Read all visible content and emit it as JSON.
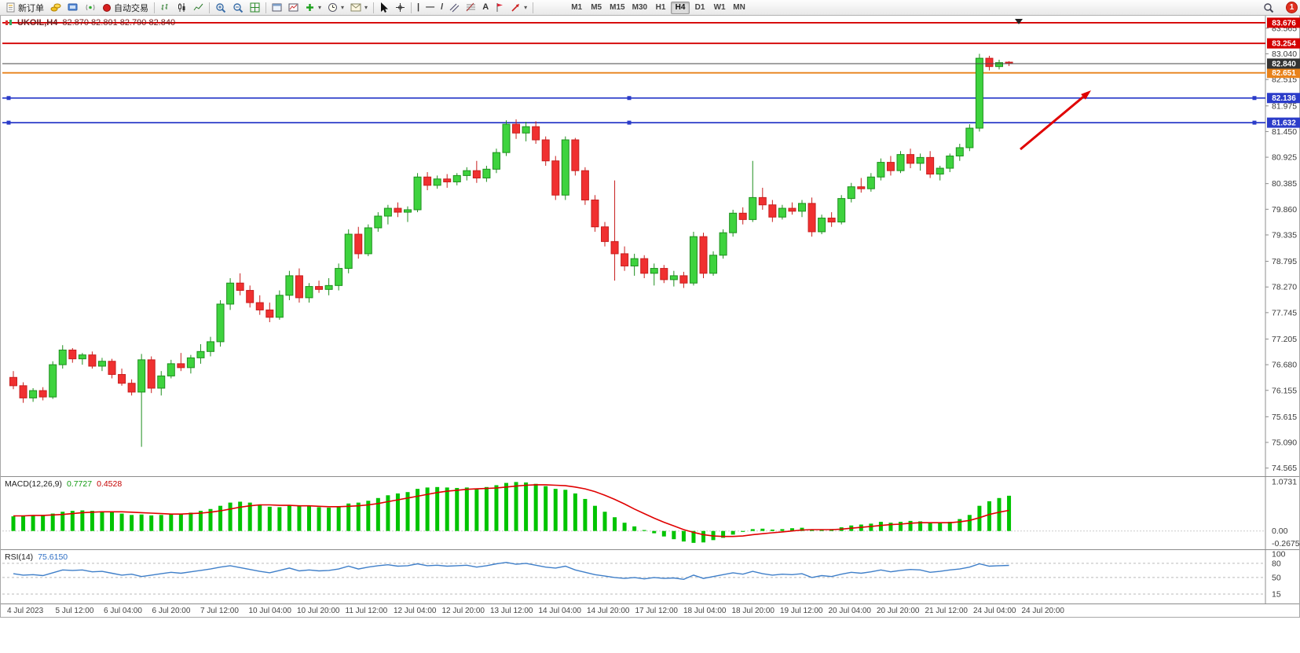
{
  "toolbar": {
    "new_order_label": "新订单",
    "autotrading_label": "自动交易",
    "caret": "▾",
    "drawing": {
      "vline": "|",
      "hline": "—",
      "trendline": "/",
      "text": "A"
    },
    "timeframes": [
      "M1",
      "M5",
      "M15",
      "M30",
      "H1",
      "H4",
      "D1",
      "W1",
      "MN"
    ],
    "active_timeframe": "H4",
    "notification_count": "1"
  },
  "chart": {
    "title": "UKOIL,H4",
    "ohlc": "82.870 82.891 82.790 82.840"
  },
  "chart_data": {
    "type": "candlestick",
    "symbol": "UKOIL",
    "timeframe": "H4",
    "price_axis_ticks": [
      83.565,
      83.04,
      82.515,
      81.975,
      81.45,
      80.925,
      80.385,
      79.86,
      79.335,
      78.795,
      78.27,
      77.745,
      77.205,
      76.68,
      76.155,
      75.615,
      75.09,
      74.565
    ],
    "hlines": [
      {
        "value": 83.676,
        "label": "83.676",
        "color": "#d40000",
        "selected": false
      },
      {
        "value": 83.254,
        "label": "83.254",
        "color": "#d40000",
        "selected": false
      },
      {
        "value": 82.651,
        "label": "82.651",
        "color": "#e8821a",
        "selected": false
      },
      {
        "value": 82.136,
        "label": "82.136",
        "color": "#2b3cc9",
        "selected": true
      },
      {
        "value": 81.632,
        "label": "81.632",
        "color": "#2b3cc9",
        "selected": true
      }
    ],
    "current_price": {
      "value": 82.84,
      "label": "82.840",
      "color": "#333333"
    },
    "annotation_arrow": {
      "from": [
        1298,
        170
      ],
      "to": [
        1388,
        95
      ],
      "color": "#e00000"
    },
    "time_labels": [
      "4 Jul 2023",
      "5 Jul 12:00",
      "6 Jul 04:00",
      "6 Jul 20:00",
      "7 Jul 12:00",
      "10 Jul 04:00",
      "10 Jul 20:00",
      "11 Jul 12:00",
      "12 Jul 04:00",
      "12 Jul 20:00",
      "13 Jul 12:00",
      "14 Jul 04:00",
      "14 Jul 20:00",
      "17 Jul 12:00",
      "18 Jul 04:00",
      "18 Jul 20:00",
      "19 Jul 12:00",
      "20 Jul 04:00",
      "20 Jul 20:00",
      "21 Jul 12:00",
      "24 Jul 04:00",
      "24 Jul 20:00"
    ],
    "candles": [
      [
        76.42,
        76.55,
        76.18,
        76.25
      ],
      [
        76.25,
        76.32,
        75.9,
        76.0
      ],
      [
        76.0,
        76.2,
        75.92,
        76.15
      ],
      [
        76.15,
        76.22,
        75.95,
        76.02
      ],
      [
        76.02,
        76.75,
        75.98,
        76.68
      ],
      [
        76.68,
        77.08,
        76.6,
        76.98
      ],
      [
        76.98,
        77.02,
        76.72,
        76.8
      ],
      [
        76.8,
        76.92,
        76.68,
        76.88
      ],
      [
        76.88,
        76.95,
        76.6,
        76.65
      ],
      [
        76.65,
        76.82,
        76.55,
        76.75
      ],
      [
        76.75,
        76.8,
        76.4,
        76.48
      ],
      [
        76.48,
        76.6,
        76.25,
        76.3
      ],
      [
        76.3,
        76.38,
        76.05,
        76.12
      ],
      [
        76.12,
        76.9,
        75.0,
        76.78
      ],
      [
        76.78,
        76.85,
        76.1,
        76.2
      ],
      [
        76.2,
        76.55,
        76.05,
        76.45
      ],
      [
        76.45,
        76.78,
        76.4,
        76.7
      ],
      [
        76.7,
        76.92,
        76.55,
        76.62
      ],
      [
        76.62,
        76.88,
        76.5,
        76.82
      ],
      [
        76.82,
        77.1,
        76.7,
        76.95
      ],
      [
        76.95,
        77.25,
        76.85,
        77.15
      ],
      [
        77.15,
        78.0,
        77.05,
        77.92
      ],
      [
        77.92,
        78.45,
        77.8,
        78.35
      ],
      [
        78.35,
        78.55,
        78.1,
        78.2
      ],
      [
        78.2,
        78.3,
        77.85,
        77.95
      ],
      [
        77.95,
        78.1,
        77.7,
        77.8
      ],
      [
        77.8,
        77.95,
        77.55,
        77.65
      ],
      [
        77.65,
        78.2,
        77.6,
        78.1
      ],
      [
        78.1,
        78.6,
        78.0,
        78.5
      ],
      [
        78.5,
        78.65,
        77.95,
        78.05
      ],
      [
        78.05,
        78.35,
        77.95,
        78.28
      ],
      [
        78.28,
        78.4,
        78.15,
        78.22
      ],
      [
        78.22,
        78.45,
        78.1,
        78.3
      ],
      [
        78.3,
        78.75,
        78.2,
        78.65
      ],
      [
        78.65,
        79.45,
        78.55,
        79.35
      ],
      [
        79.35,
        79.5,
        78.85,
        78.95
      ],
      [
        78.95,
        79.55,
        78.9,
        79.48
      ],
      [
        79.48,
        79.8,
        79.4,
        79.72
      ],
      [
        79.72,
        79.95,
        79.55,
        79.88
      ],
      [
        79.88,
        80.0,
        79.7,
        79.8
      ],
      [
        79.8,
        79.92,
        79.6,
        79.85
      ],
      [
        79.85,
        80.6,
        79.8,
        80.52
      ],
      [
        80.52,
        80.62,
        80.25,
        80.35
      ],
      [
        80.35,
        80.55,
        80.28,
        80.48
      ],
      [
        80.48,
        80.58,
        80.3,
        80.42
      ],
      [
        80.42,
        80.6,
        80.35,
        80.55
      ],
      [
        80.55,
        80.72,
        80.45,
        80.65
      ],
      [
        80.65,
        80.85,
        80.4,
        80.5
      ],
      [
        80.5,
        80.75,
        80.42,
        80.68
      ],
      [
        80.68,
        81.1,
        80.6,
        81.02
      ],
      [
        81.02,
        81.68,
        80.95,
        81.6
      ],
      [
        81.6,
        81.7,
        81.3,
        81.42
      ],
      [
        81.42,
        81.65,
        81.25,
        81.55
      ],
      [
        81.55,
        81.66,
        81.2,
        81.28
      ],
      [
        81.28,
        81.35,
        80.75,
        80.85
      ],
      [
        80.85,
        80.95,
        80.05,
        80.15
      ],
      [
        80.15,
        81.35,
        80.05,
        81.28
      ],
      [
        81.28,
        81.32,
        80.55,
        80.65
      ],
      [
        80.65,
        80.72,
        79.95,
        80.05
      ],
      [
        80.05,
        80.15,
        79.4,
        79.5
      ],
      [
        79.5,
        79.6,
        79.1,
        79.2
      ],
      [
        79.2,
        80.45,
        78.4,
        78.95
      ],
      [
        78.95,
        79.1,
        78.6,
        78.7
      ],
      [
        78.7,
        78.95,
        78.5,
        78.85
      ],
      [
        78.85,
        78.92,
        78.45,
        78.55
      ],
      [
        78.55,
        78.75,
        78.3,
        78.65
      ],
      [
        78.65,
        78.72,
        78.35,
        78.42
      ],
      [
        78.42,
        78.6,
        78.28,
        78.5
      ],
      [
        78.5,
        78.58,
        78.25,
        78.35
      ],
      [
        78.35,
        79.4,
        78.3,
        79.3
      ],
      [
        79.3,
        79.38,
        78.45,
        78.55
      ],
      [
        78.55,
        79.0,
        78.5,
        78.92
      ],
      [
        78.92,
        79.45,
        78.85,
        79.38
      ],
      [
        79.38,
        79.85,
        79.3,
        79.78
      ],
      [
        79.78,
        79.9,
        79.55,
        79.65
      ],
      [
        79.65,
        80.85,
        79.6,
        80.1
      ],
      [
        80.1,
        80.3,
        79.85,
        79.95
      ],
      [
        79.95,
        80.05,
        79.6,
        79.7
      ],
      [
        79.7,
        79.95,
        79.65,
        79.88
      ],
      [
        79.88,
        80.0,
        79.75,
        79.82
      ],
      [
        79.82,
        80.05,
        79.7,
        79.98
      ],
      [
        79.98,
        80.1,
        79.3,
        79.4
      ],
      [
        79.4,
        79.75,
        79.35,
        79.68
      ],
      [
        79.68,
        79.8,
        79.5,
        79.6
      ],
      [
        79.6,
        80.15,
        79.55,
        80.08
      ],
      [
        80.08,
        80.4,
        80.0,
        80.32
      ],
      [
        80.32,
        80.5,
        80.2,
        80.28
      ],
      [
        80.28,
        80.6,
        80.22,
        80.52
      ],
      [
        80.52,
        80.9,
        80.45,
        80.82
      ],
      [
        80.82,
        80.95,
        80.55,
        80.65
      ],
      [
        80.65,
        81.05,
        80.6,
        80.98
      ],
      [
        80.98,
        81.1,
        80.7,
        80.8
      ],
      [
        80.8,
        81.0,
        80.65,
        80.92
      ],
      [
        80.92,
        81.05,
        80.5,
        80.58
      ],
      [
        80.58,
        80.75,
        80.45,
        80.7
      ],
      [
        80.7,
        81.0,
        80.62,
        80.95
      ],
      [
        80.95,
        81.2,
        80.85,
        81.12
      ],
      [
        81.12,
        81.6,
        81.05,
        81.52
      ],
      [
        81.52,
        83.04,
        81.45,
        82.95
      ],
      [
        82.95,
        83.0,
        82.7,
        82.78
      ],
      [
        82.78,
        82.92,
        82.72,
        82.86
      ],
      [
        82.87,
        82.89,
        82.79,
        82.84
      ]
    ],
    "macd": {
      "label": "MACD(12,26,9)",
      "value_main": "0.7727",
      "value_signal": "0.4528",
      "axis": [
        {
          "value": 1.0731,
          "label": "1.0731"
        },
        {
          "value": 0,
          "label": "0.00"
        },
        {
          "value": -0.2675,
          "label": "-0.2675"
        }
      ],
      "histogram": [
        0.32,
        0.34,
        0.33,
        0.35,
        0.38,
        0.42,
        0.44,
        0.45,
        0.44,
        0.43,
        0.41,
        0.38,
        0.35,
        0.36,
        0.34,
        0.35,
        0.37,
        0.38,
        0.4,
        0.44,
        0.48,
        0.55,
        0.62,
        0.64,
        0.62,
        0.58,
        0.53,
        0.52,
        0.56,
        0.55,
        0.54,
        0.52,
        0.51,
        0.53,
        0.6,
        0.62,
        0.66,
        0.72,
        0.78,
        0.82,
        0.85,
        0.92,
        0.95,
        0.96,
        0.95,
        0.94,
        0.95,
        0.93,
        0.96,
        1.0,
        1.05,
        1.07,
        1.06,
        1.03,
        0.98,
        0.92,
        0.9,
        0.82,
        0.7,
        0.55,
        0.42,
        0.3,
        0.18,
        0.1,
        0.02,
        -0.05,
        -0.12,
        -0.18,
        -0.23,
        -0.26,
        -0.25,
        -0.2,
        -0.15,
        -0.08,
        -0.02,
        0.04,
        0.05,
        0.03,
        0.04,
        0.06,
        0.07,
        0.03,
        0.02,
        0.04,
        0.08,
        0.12,
        0.14,
        0.16,
        0.2,
        0.18,
        0.2,
        0.22,
        0.21,
        0.18,
        0.17,
        0.2,
        0.26,
        0.35,
        0.55,
        0.65,
        0.72,
        0.77
      ],
      "signal": [
        0.33,
        0.33,
        0.34,
        0.34,
        0.35,
        0.36,
        0.38,
        0.4,
        0.41,
        0.42,
        0.42,
        0.42,
        0.41,
        0.4,
        0.39,
        0.38,
        0.37,
        0.37,
        0.38,
        0.39,
        0.41,
        0.44,
        0.48,
        0.52,
        0.55,
        0.57,
        0.57,
        0.56,
        0.56,
        0.55,
        0.55,
        0.54,
        0.53,
        0.53,
        0.54,
        0.55,
        0.57,
        0.6,
        0.64,
        0.68,
        0.72,
        0.76,
        0.8,
        0.84,
        0.87,
        0.89,
        0.91,
        0.92,
        0.93,
        0.94,
        0.96,
        0.98,
        1.0,
        1.01,
        1.01,
        1.0,
        0.99,
        0.96,
        0.92,
        0.86,
        0.78,
        0.69,
        0.59,
        0.48,
        0.38,
        0.28,
        0.19,
        0.11,
        0.03,
        -0.03,
        -0.08,
        -0.11,
        -0.12,
        -0.12,
        -0.11,
        -0.08,
        -0.06,
        -0.04,
        -0.02,
        0.0,
        0.02,
        0.03,
        0.03,
        0.03,
        0.04,
        0.06,
        0.08,
        0.1,
        0.12,
        0.14,
        0.15,
        0.17,
        0.18,
        0.18,
        0.18,
        0.18,
        0.2,
        0.23,
        0.29,
        0.36,
        0.41,
        0.45
      ]
    },
    "rsi": {
      "label": "RSI(14)",
      "value": "75.6150",
      "levels": [
        80,
        50,
        15
      ],
      "axis": [
        {
          "value": 100,
          "label": "100"
        },
        {
          "value": 80,
          "label": "80"
        },
        {
          "value": 50,
          "label": "50"
        },
        {
          "value": 15,
          "label": "15"
        }
      ],
      "values": [
        58,
        55,
        56,
        54,
        60,
        66,
        65,
        66,
        62,
        63,
        59,
        55,
        57,
        52,
        55,
        58,
        61,
        59,
        62,
        65,
        68,
        72,
        75,
        71,
        67,
        63,
        60,
        65,
        70,
        64,
        66,
        64,
        65,
        68,
        74,
        68,
        72,
        75,
        77,
        74,
        75,
        79,
        75,
        76,
        74,
        75,
        76,
        72,
        75,
        79,
        82,
        78,
        80,
        76,
        72,
        70,
        74,
        66,
        61,
        56,
        53,
        50,
        48,
        50,
        47,
        50,
        48,
        49,
        46,
        55,
        48,
        52,
        56,
        60,
        57,
        63,
        58,
        55,
        57,
        56,
        58,
        50,
        54,
        52,
        57,
        61,
        59,
        62,
        66,
        62,
        65,
        67,
        66,
        61,
        63,
        66,
        68,
        72,
        79,
        74,
        75,
        75.6
      ]
    }
  }
}
